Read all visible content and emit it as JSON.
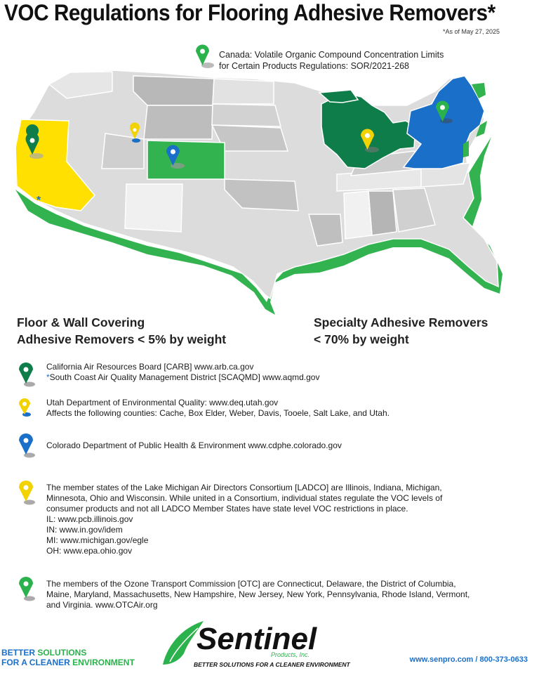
{
  "title": "VOC Regulations for Flooring Adhesive Removers*",
  "as_of": "*As of May 27, 2025",
  "canada_note": {
    "line1": "Canada: Volatile Organic Compound Concentration Limits",
    "line2": "for Certain Products Regulations: SOR/2021-268"
  },
  "headings": {
    "left_line1": "Floor & Wall Covering",
    "left_line2": "Adhesive Removers < 5% by weight",
    "right_line1": "Specialty Adhesive Removers",
    "right_line2": "< 70% by weight"
  },
  "legend": {
    "carb": {
      "line1": "California Air Resources Board [CARB] www.arb.ca.gov",
      "line2_mark": "*",
      "line2": "South Coast Air Quality Management District [SCAQMD] www.aqmd.gov"
    },
    "utah": {
      "line1": "Utah Department of Environmental Quality: www.deq.utah.gov",
      "line2": "Affects the following counties: Cache, Box Elder, Weber, Davis, Tooele, Salt Lake, and Utah."
    },
    "colorado": {
      "line1": "Colorado Department of Public Health & Environment www.cdphe.colorado.gov"
    },
    "ladco": {
      "line1": "The member states of the Lake Michigan Air Directors Consortium [LADCO] are Illinois, Indiana, Michigan,",
      "line2": "Minnesota, Ohio and Wisconsin. While united in a Consortium, individual states regulate the VOC levels of",
      "line3": "consumer products and not all LADCO Member States have state level VOC restrictions in place.",
      "line4": "IL: www.pcb.illinois.gov",
      "line5": "IN: www.in.gov/idem",
      "line6": "MI: www.michigan.gov/egle",
      "line7": "OH: www.epa.ohio.gov"
    },
    "otc": {
      "line1": "The members of the Ozone Transport Commission [OTC] are Connecticut, Delaware, the District of Columbia,",
      "line2": "Maine, Maryland, Massachusetts, New Hampshire, New Jersey, New York, Pennsylvania, Rhode Island, Vermont,",
      "line3": "and Virginia. www.OTCAir.org"
    }
  },
  "map_marker_star": "*",
  "footer": {
    "tagline_line1_a": "BETTER ",
    "tagline_line1_b": "SOLUTIONS",
    "tagline_line2_a": "FOR A CLEANER ",
    "tagline_line2_b": "ENVIRONMENT",
    "logo_text": "Sentinel",
    "logo_sub": "Products, Inc.",
    "logo_tagline": "BETTER SOLUTIONS FOR A CLEANER ENVIRONMENT",
    "contact": "www.senpro.com  /  800-373-0633"
  },
  "colors": {
    "carb_pin": "#0f7d4a",
    "utah_pin": "#f2d200",
    "colorado_pin": "#1a6fc9",
    "ladco_pin": "#f2d200",
    "otc_pin": "#2bb24c",
    "california": "#ffe000",
    "colorado_state": "#33b34f",
    "ladco_states": "#0f7d4a",
    "otc_states": "#1a6fc9",
    "base_states": "#d9d9d9",
    "shadow": "#33b34f"
  }
}
